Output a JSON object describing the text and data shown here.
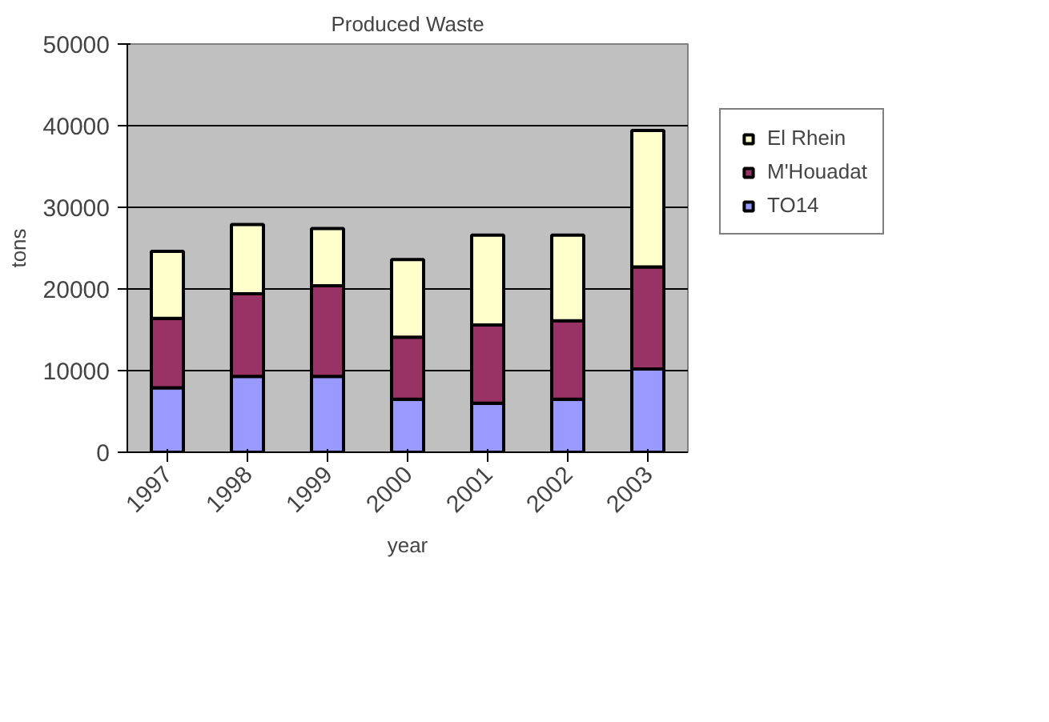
{
  "chart_data": {
    "type": "bar",
    "title": "Produced Waste",
    "xlabel": "year",
    "ylabel": "tons",
    "categories": [
      "1997",
      "1998",
      "1999",
      "2000",
      "2001",
      "2002",
      "2003"
    ],
    "stacked": true,
    "series": [
      {
        "name": "TO14",
        "color": "#9999ff",
        "values": [
          7900,
          9300,
          9300,
          6500,
          6000,
          6500,
          10200
        ]
      },
      {
        "name": "M'Houadat",
        "color": "#993366",
        "values": [
          8500,
          10100,
          11100,
          7600,
          9600,
          9600,
          12500
        ]
      },
      {
        "name": "El Rhein",
        "color": "#ffffcc",
        "values": [
          8200,
          8500,
          7000,
          9500,
          11000,
          10500,
          16700
        ]
      }
    ],
    "ylim": [
      0,
      50000
    ],
    "yticks": [
      0,
      10000,
      20000,
      30000,
      40000,
      50000
    ],
    "grid": "y",
    "legend": "right"
  }
}
